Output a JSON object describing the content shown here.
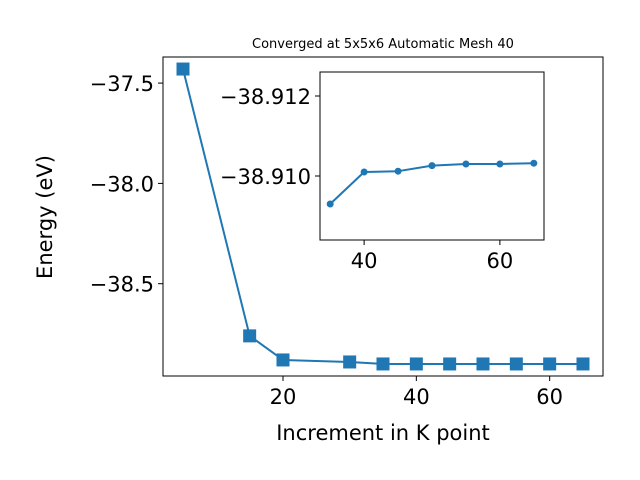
{
  "chart_data": [
    {
      "type": "line",
      "title": "Converged at 5x5x6 Automatic Mesh 40",
      "xlabel": "Increment in K point",
      "ylabel": "Energy (eV)",
      "xlim": [
        2.0,
        68.0
      ],
      "ylim": [
        -38.96,
        -37.37
      ],
      "xticks": [
        20,
        40,
        60
      ],
      "xtick_labels": [
        "20",
        "40",
        "60"
      ],
      "yticks": [
        -37.5,
        -38.0,
        -38.5
      ],
      "ytick_labels": [
        "−37.5",
        "−38.0",
        "−38.5"
      ],
      "marker": "square",
      "color": "#1f77b4",
      "grid": false,
      "series": [
        {
          "x": [
            5,
            15,
            20,
            30,
            35,
            40,
            45,
            50,
            55,
            60,
            65
          ],
          "y": [
            -37.43,
            -38.76,
            -38.88,
            -38.89,
            -38.9,
            -38.9,
            -38.9,
            -38.9,
            -38.9,
            -38.9,
            -38.9
          ]
        }
      ]
    },
    {
      "type": "line",
      "title": "",
      "xlabel": "",
      "ylabel": "",
      "xlim": [
        33.5,
        66.5
      ],
      "ylim": [
        -38.9084,
        -38.9126
      ],
      "xticks": [
        40,
        60
      ],
      "xtick_labels": [
        "40",
        "60"
      ],
      "yticks": [
        -38.912,
        -38.91
      ],
      "ytick_labels": [
        "−38.912",
        "−38.910"
      ],
      "marker": "circle",
      "color": "#1f77b4",
      "grid": false,
      "series": [
        {
          "x": [
            35,
            40,
            45,
            50,
            55,
            60,
            65
          ],
          "y": [
            -38.9093,
            -38.9101,
            -38.91012,
            -38.91026,
            -38.9103,
            -38.9103,
            -38.91032
          ]
        }
      ]
    }
  ]
}
